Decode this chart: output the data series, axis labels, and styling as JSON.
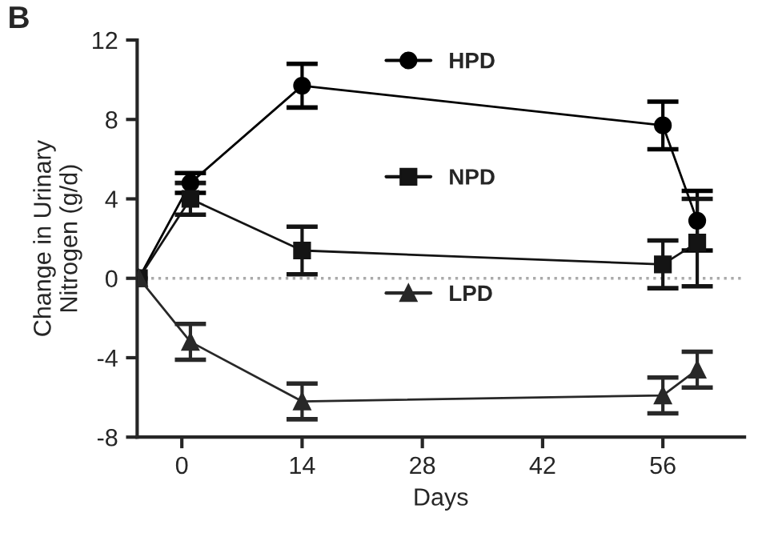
{
  "chart_data": {
    "type": "line",
    "title": "B",
    "xlabel": "Days",
    "ylabel": "Change in Urinary\nNitrogen (g/d)",
    "x": [
      -5,
      1,
      14,
      56,
      60
    ],
    "series": [
      {
        "name": "HPD",
        "color": "#000000",
        "marker": "circle",
        "values": [
          0,
          4.8,
          9.7,
          7.7,
          2.9
        ],
        "errors": [
          null,
          0.5,
          1.1,
          1.2,
          1.5
        ]
      },
      {
        "name": "NPD",
        "color": "#141414",
        "marker": "square",
        "values": [
          0,
          4.0,
          1.4,
          0.7,
          1.8
        ],
        "errors": [
          null,
          0.8,
          1.2,
          1.2,
          2.2
        ]
      },
      {
        "name": "LPD",
        "color": "#282828",
        "marker": "triangle",
        "values": [
          0,
          -3.2,
          -6.2,
          -5.9,
          -4.6
        ],
        "errors": [
          null,
          0.9,
          0.9,
          0.9,
          0.9
        ]
      }
    ],
    "xlim": [
      -5.2,
      65.5
    ],
    "xticks": [
      0,
      14,
      28,
      42,
      56
    ],
    "ylim": [
      -8,
      12
    ],
    "yticks": [
      -8,
      {
        "value": -4,
        "label": "-4"
      },
      0,
      4,
      8,
      12
    ],
    "ref_lines": [
      {
        "axis": "y",
        "value": 0,
        "color": "#aaaaaa",
        "line_style": "dotted"
      }
    ],
    "legend": "top",
    "grid": false
  }
}
